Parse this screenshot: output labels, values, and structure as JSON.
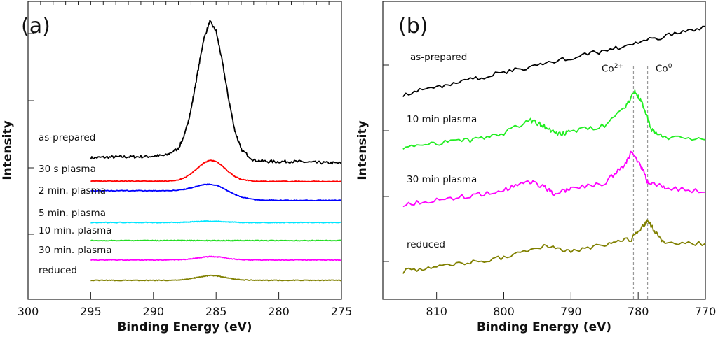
{
  "chart_data": [
    {
      "type": "line",
      "panel_label": "(a)",
      "xlabel": "Binding Energy (eV)",
      "ylabel": "Intensity",
      "xlim": [
        300,
        275
      ],
      "ylim": [
        0,
        102.4
      ],
      "x_reversed": true,
      "xticks": [
        300,
        295,
        290,
        285,
        280,
        275
      ],
      "y_tick_labels_shown": false,
      "grid": false,
      "x": [
        295,
        294,
        293,
        292,
        291,
        290,
        289,
        288,
        287.5,
        287,
        286.5,
        286,
        285.5,
        285,
        284.5,
        284,
        283.5,
        283,
        282,
        281,
        280,
        279,
        278,
        277,
        276,
        275
      ],
      "series": [
        {
          "name": "as-prepared",
          "color": "#000000",
          "values": [
            48.6,
            48.8,
            48.9,
            49.0,
            49.0,
            49.2,
            49.5,
            51.9,
            56.6,
            65.2,
            77.3,
            89.2,
            95.5,
            92.2,
            81.5,
            68.8,
            57.9,
            51.5,
            47.8,
            47.4,
            47.3,
            47.4,
            47.2,
            47.0,
            46.9,
            46.8
          ]
        },
        {
          "name": "30 s plasma",
          "color": "#ff0000",
          "values": [
            40.6,
            40.6,
            40.6,
            40.6,
            40.6,
            40.6,
            40.6,
            41.0,
            41.8,
            43.1,
            45.0,
            46.8,
            47.8,
            47.4,
            45.8,
            43.8,
            42.2,
            41.2,
            40.6,
            40.5,
            40.5,
            40.5,
            40.5,
            40.5,
            40.5,
            40.5
          ]
        },
        {
          "name": "2 min. plasma",
          "color": "#0000ff",
          "values": [
            37.3,
            37.3,
            37.3,
            37.3,
            37.3,
            37.3,
            37.3,
            37.5,
            37.8,
            38.3,
            38.9,
            39.4,
            39.5,
            39.2,
            38.3,
            37.1,
            36.0,
            35.2,
            34.3,
            34.1,
            34.0,
            34.0,
            34.0,
            34.0,
            34.0,
            34.0
          ]
        },
        {
          "name": "5 min. plasma",
          "color": "#00e5ff",
          "values": [
            26.4,
            26.4,
            26.4,
            26.4,
            26.4,
            26.4,
            26.4,
            26.4,
            26.5,
            26.6,
            26.7,
            26.8,
            26.8,
            26.8,
            26.7,
            26.6,
            26.5,
            26.4,
            26.4,
            26.4,
            26.4,
            26.4,
            26.4,
            26.4,
            26.4,
            26.4
          ]
        },
        {
          "name": "10 min. plasma",
          "color": "#22dd22",
          "values": [
            20.2,
            20.2,
            20.2,
            20.2,
            20.2,
            20.2,
            20.2,
            20.2,
            20.2,
            20.2,
            20.2,
            20.2,
            20.2,
            20.2,
            20.2,
            20.2,
            20.2,
            20.2,
            20.2,
            20.2,
            20.2,
            20.2,
            20.2,
            20.2,
            20.2,
            20.2
          ]
        },
        {
          "name": "30 min. plasma",
          "color": "#ff00ff",
          "values": [
            13.5,
            13.5,
            13.5,
            13.5,
            13.5,
            13.5,
            13.5,
            13.6,
            13.7,
            13.9,
            14.2,
            14.5,
            14.7,
            14.6,
            14.4,
            14.0,
            13.8,
            13.6,
            13.5,
            13.5,
            13.5,
            13.5,
            13.5,
            13.5,
            13.5,
            13.5
          ]
        },
        {
          "name": "reduced",
          "color": "#808000",
          "values": [
            6.5,
            6.5,
            6.5,
            6.5,
            6.5,
            6.5,
            6.5,
            6.6,
            6.8,
            7.1,
            7.5,
            7.9,
            8.2,
            8.1,
            7.7,
            7.3,
            6.9,
            6.7,
            6.5,
            6.5,
            6.5,
            6.5,
            6.5,
            6.5,
            6.5,
            6.5
          ]
        }
      ]
    },
    {
      "type": "line",
      "panel_label": "(b)",
      "xlabel": "Binding Energy (eV)",
      "ylabel": "Intensity",
      "xlim": [
        818,
        770
      ],
      "ylim": [
        0,
        102.4
      ],
      "x_reversed": true,
      "xticks": [
        810,
        800,
        790,
        780,
        770
      ],
      "y_tick_labels_shown": false,
      "grid": false,
      "annotations": [
        {
          "text_main": "Co",
          "text_sup": "2+",
          "x": 780.7,
          "style": "dashed vertical line",
          "color": "#999999"
        },
        {
          "text_main": "Co",
          "text_sup": "0",
          "x": 778.6,
          "style": "dashed vertical line",
          "color": "#999999"
        }
      ],
      "series": [
        {
          "name": "as-prepared",
          "color": "#000000",
          "x": [
            815,
            810,
            805,
            800,
            795,
            790,
            785,
            780,
            775,
            770
          ],
          "values": [
            70.4,
            73.0,
            75.5,
            78.0,
            80.5,
            83.0,
            85.5,
            88.2,
            91.0,
            93.8
          ]
        },
        {
          "name": "10 min plasma",
          "color": "#22ee22",
          "x": [
            815,
            810,
            805,
            800,
            796,
            794,
            792,
            790,
            785,
            782,
            780.5,
            779.5,
            778,
            776,
            770
          ],
          "values": [
            52.4,
            53.6,
            54.8,
            57.2,
            61.5,
            59.6,
            56.5,
            57.7,
            59.6,
            65.6,
            71.6,
            68.0,
            58.4,
            55.5,
            54.8
          ]
        },
        {
          "name": "30 min plasma",
          "color": "#ff00ff",
          "x": [
            815,
            810,
            805,
            800,
            796.5,
            794,
            792.5,
            790,
            785,
            782,
            781,
            779.5,
            778.5,
            776,
            770
          ],
          "values": [
            32.7,
            34.2,
            35.6,
            37.5,
            40.9,
            38.5,
            36.1,
            38.0,
            39.9,
            46.4,
            50.5,
            45.2,
            39.9,
            38.5,
            36.8
          ]
        },
        {
          "name": "reduced",
          "color": "#808000",
          "x": [
            815,
            810,
            805,
            800,
            794,
            790,
            785,
            781,
            779,
            778.5,
            777.5,
            776,
            770
          ],
          "values": [
            9.6,
            11.2,
            12.7,
            14.4,
            18.3,
            16.3,
            18.8,
            20.7,
            26.0,
            27.2,
            23.1,
            18.8,
            19.2
          ]
        }
      ]
    }
  ]
}
